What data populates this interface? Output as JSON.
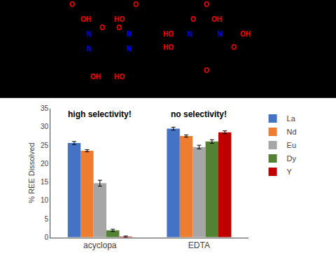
{
  "chart_data": {
    "type": "bar",
    "categories": [
      "acyclopa",
      "EDTA"
    ],
    "series": [
      {
        "name": "La",
        "color": "#4472C4",
        "values": [
          25.6,
          29.5
        ],
        "errors": [
          0.4,
          0.4
        ]
      },
      {
        "name": "Nd",
        "color": "#ED7D31",
        "values": [
          23.5,
          27.5
        ],
        "errors": [
          0.3,
          0.3
        ]
      },
      {
        "name": "Eu",
        "color": "#A6A6A6",
        "values": [
          14.7,
          24.5
        ],
        "errors": [
          0.8,
          0.5
        ]
      },
      {
        "name": "Dy",
        "color": "#548235",
        "values": [
          1.9,
          26.0
        ],
        "errors": [
          0.3,
          0.5
        ]
      },
      {
        "name": "Y",
        "color": "#C00000",
        "values": [
          0.2,
          28.5
        ],
        "errors": [
          0.15,
          0.4
        ]
      }
    ],
    "ylabel": "% REE Dissolved",
    "ylim": [
      0,
      35
    ],
    "yticks": [
      0,
      5,
      10,
      15,
      20,
      25,
      30,
      35
    ],
    "grid": false,
    "legend": "right",
    "annotations": [
      "high selectivity!",
      "no selectivity!"
    ],
    "structure_labels": [
      [
        {
          "text": "O",
          "color": "red"
        },
        {
          "text": "OH",
          "color": "red"
        },
        {
          "text": "HO",
          "color": "red"
        },
        {
          "text": "O",
          "color": "red"
        },
        {
          "text": "N",
          "color": "blue"
        },
        {
          "text": "O",
          "color": "red"
        },
        {
          "text": "O",
          "color": "red"
        },
        {
          "text": "N",
          "color": "blue"
        },
        {
          "text": "N",
          "color": "blue"
        },
        {
          "text": "N",
          "color": "blue"
        },
        {
          "text": "OH",
          "color": "red"
        },
        {
          "text": "HO",
          "color": "red"
        }
      ],
      [
        {
          "text": "O",
          "color": "red"
        },
        {
          "text": "O",
          "color": "red"
        },
        {
          "text": "OH",
          "color": "red"
        },
        {
          "text": "HO",
          "color": "red"
        },
        {
          "text": "N",
          "color": "blue"
        },
        {
          "text": "N",
          "color": "blue"
        },
        {
          "text": "HO",
          "color": "red"
        },
        {
          "text": "O",
          "color": "red"
        },
        {
          "text": "OH",
          "color": "red"
        },
        {
          "text": "O",
          "color": "red"
        }
      ]
    ]
  }
}
